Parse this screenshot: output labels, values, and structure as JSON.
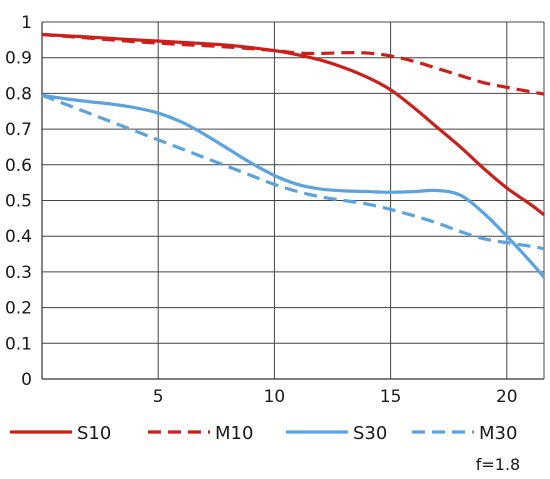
{
  "chart_data": {
    "type": "line",
    "xlim": [
      0,
      21.6
    ],
    "ylim": [
      0,
      1
    ],
    "x_ticks": [
      5,
      10,
      15,
      20
    ],
    "y_ticks": [
      0,
      0.1,
      0.2,
      0.3,
      0.4,
      0.5,
      0.6,
      0.7,
      0.8,
      0.9,
      1
    ],
    "grid": true,
    "legend_position": "bottom",
    "note": "f=1.8",
    "series": [
      {
        "name": "S10",
        "color": "#cc1f1a",
        "dash": "solid",
        "x": [
          0,
          2,
          4,
          6,
          8,
          10,
          11,
          12,
          13,
          14,
          15,
          16,
          17,
          18,
          19,
          20,
          21,
          21.6
        ],
        "y": [
          0.965,
          0.958,
          0.95,
          0.943,
          0.935,
          0.92,
          0.908,
          0.893,
          0.872,
          0.845,
          0.81,
          0.76,
          0.705,
          0.65,
          0.59,
          0.535,
          0.49,
          0.46
        ]
      },
      {
        "name": "M10",
        "color": "#cc1f1a",
        "dash": "dashed",
        "x": [
          0,
          2,
          4,
          6,
          8,
          10,
          11,
          12,
          13,
          14,
          15,
          16,
          17,
          18,
          19,
          20,
          21,
          21.6
        ],
        "y": [
          0.965,
          0.955,
          0.945,
          0.937,
          0.93,
          0.92,
          0.913,
          0.912,
          0.914,
          0.913,
          0.905,
          0.89,
          0.87,
          0.85,
          0.83,
          0.817,
          0.805,
          0.798
        ]
      },
      {
        "name": "S30",
        "color": "#5aa3e0",
        "dash": "solid",
        "x": [
          0,
          1,
          2,
          3,
          4,
          5,
          6,
          7,
          8,
          9,
          10,
          11,
          12,
          13,
          14,
          15,
          16,
          17,
          18,
          19,
          20,
          21,
          21.6
        ],
        "y": [
          0.795,
          0.785,
          0.777,
          0.77,
          0.76,
          0.745,
          0.72,
          0.685,
          0.645,
          0.605,
          0.57,
          0.545,
          0.532,
          0.527,
          0.525,
          0.523,
          0.525,
          0.528,
          0.515,
          0.465,
          0.4,
          0.33,
          0.285
        ]
      },
      {
        "name": "M30",
        "color": "#5aa3e0",
        "dash": "dashed",
        "x": [
          0,
          1,
          2,
          3,
          4,
          5,
          6,
          7,
          8,
          9,
          10,
          11,
          12,
          13,
          14,
          15,
          16,
          17,
          18,
          19,
          20,
          21,
          21.6
        ],
        "y": [
          0.795,
          0.77,
          0.745,
          0.72,
          0.695,
          0.67,
          0.645,
          0.62,
          0.595,
          0.57,
          0.545,
          0.525,
          0.51,
          0.5,
          0.49,
          0.475,
          0.457,
          0.437,
          0.413,
          0.393,
          0.382,
          0.372,
          0.365
        ]
      }
    ]
  }
}
